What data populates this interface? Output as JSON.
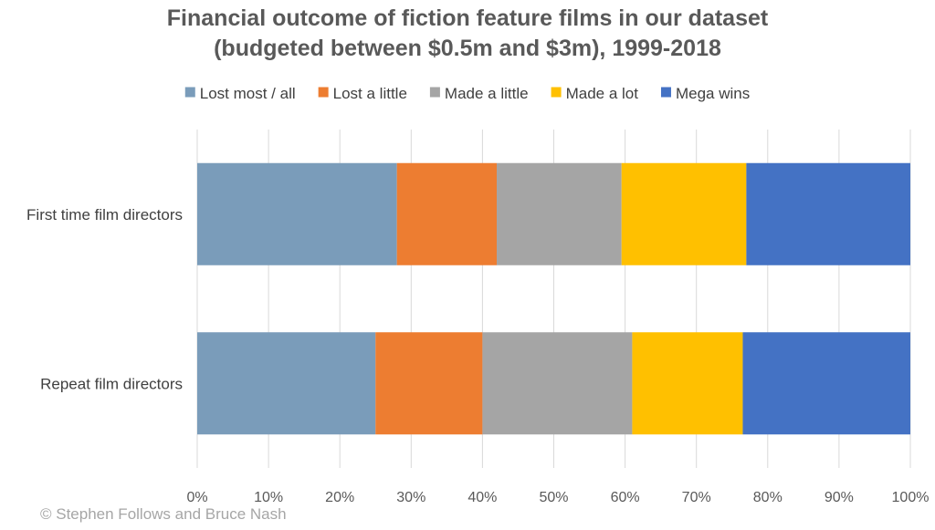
{
  "chart_data": {
    "type": "bar",
    "orientation": "horizontal",
    "stacked": "percent",
    "title": [
      "Financial outcome of fiction feature films in our dataset",
      "(budgeted between $0.5m and $3m), 1999-2018"
    ],
    "categories": [
      "First time film directors",
      "Repeat film directors"
    ],
    "series": [
      {
        "name": "Lost most / all",
        "color": "#7a9cba",
        "values": [
          28,
          25
        ]
      },
      {
        "name": "Lost a little",
        "color": "#ed7d31",
        "values": [
          14,
          15
        ]
      },
      {
        "name": "Made a little",
        "color": "#a5a5a5",
        "values": [
          17.5,
          21
        ]
      },
      {
        "name": "Made a lot",
        "color": "#ffc000",
        "values": [
          17.5,
          15.5
        ]
      },
      {
        "name": "Mega wins",
        "color": "#4472c4",
        "values": [
          23,
          23.5
        ]
      }
    ],
    "xlim": [
      0,
      100
    ],
    "xticks": [
      "0%",
      "10%",
      "20%",
      "30%",
      "40%",
      "50%",
      "60%",
      "70%",
      "80%",
      "90%",
      "100%"
    ],
    "grid": true,
    "legend_position": "top",
    "credit": "© Stephen Follows and Bruce Nash"
  }
}
